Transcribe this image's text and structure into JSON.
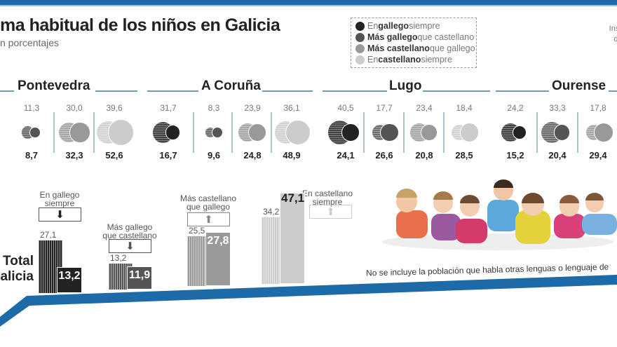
{
  "header": {
    "title": "ma habitual de los niños en Galicia",
    "subtitle": "n porcentajes",
    "source_line1": "Institu",
    "source_line2": "de E"
  },
  "legend": [
    {
      "bold": "En ",
      "strong": "gallego",
      "rest": " siempre",
      "color": "#222222"
    },
    {
      "bold": "",
      "strong": "Más gallego",
      "rest": " que castellano",
      "color": "#555555"
    },
    {
      "bold": "",
      "strong": "Más castellano",
      "rest": " que gallego",
      "color": "#999999"
    },
    {
      "bold": "En ",
      "strong": "castellano",
      "rest": " siempre",
      "color": "#cccccc"
    }
  ],
  "chart_data": [
    {
      "type": "bubble",
      "description_label": "por provincia",
      "categories": [
        "En gallego siempre",
        "Más gallego que castellano",
        "Más castellano que gallego",
        "En castellano siempre"
      ],
      "provinces": [
        {
          "name": "Pontevedra",
          "columns": [
            {
              "cat": 1,
              "top": "11,3",
              "bottom": "8,7"
            },
            {
              "cat": 2,
              "top": "30,0",
              "bottom": "32,3"
            },
            {
              "cat": 3,
              "top": "39,6",
              "bottom": "52,6"
            }
          ]
        },
        {
          "name": "A Coruña",
          "columns": [
            {
              "cat": 0,
              "top": "31,7",
              "bottom": "16,7"
            },
            {
              "cat": 1,
              "top": "8,3",
              "bottom": "9,6"
            },
            {
              "cat": 2,
              "top": "23,9",
              "bottom": "24,8"
            },
            {
              "cat": 3,
              "top": "36,1",
              "bottom": "48,9"
            }
          ]
        },
        {
          "name": "Lugo",
          "columns": [
            {
              "cat": 0,
              "top": "40,5",
              "bottom": "24,1"
            },
            {
              "cat": 1,
              "top": "17,7",
              "bottom": "26,6"
            },
            {
              "cat": 2,
              "top": "23,4",
              "bottom": "20,8"
            },
            {
              "cat": 3,
              "top": "18,4",
              "bottom": "28,5"
            }
          ]
        },
        {
          "name": "Ourense",
          "columns": [
            {
              "cat": 0,
              "top": "24,2",
              "bottom": "15,2"
            },
            {
              "cat": 1,
              "top": "33,3",
              "bottom": "20,4"
            },
            {
              "cat": 2,
              "top": "17,8",
              "bottom": "29,4"
            }
          ]
        }
      ]
    },
    {
      "type": "bar",
      "title": "Total Galicia",
      "title_line1": "Total",
      "title_line2": "alicia",
      "groups": [
        {
          "label1": "En gallego",
          "label2": "siempre",
          "arrow": "down",
          "striped": 27.1,
          "solid": 13.2,
          "striped_label": "27,1",
          "solid_label": "13,2",
          "color": "#222222",
          "arrow_color": "#222222"
        },
        {
          "label1": "Más gallego",
          "label2": "que castellano",
          "arrow": "down",
          "striped": 13.2,
          "solid": 11.9,
          "striped_label": "13,2",
          "solid_label": "11,9",
          "color": "#555555",
          "arrow_color": "#555555"
        },
        {
          "label1": "Más castellano",
          "label2": "que gallego",
          "arrow": "up",
          "striped": 25.5,
          "solid": 27.8,
          "striped_label": "25,5",
          "solid_label": "27,8",
          "color": "#999999",
          "arrow_color": "#888888"
        },
        {
          "label1": "En castellano",
          "label2": "siempre",
          "arrow": "up",
          "striped": 34.2,
          "solid": 47.1,
          "striped_label": "34,2",
          "solid_label": "47,1",
          "color": "#cccccc",
          "arrow_color": "#cccccc"
        }
      ]
    }
  ],
  "note": "No se incluye la población que habla otras lenguas o lenguaje de",
  "colors": {
    "accent": "#1c6aa8",
    "cats": [
      "#222222",
      "#555555",
      "#999999",
      "#cccccc"
    ]
  }
}
